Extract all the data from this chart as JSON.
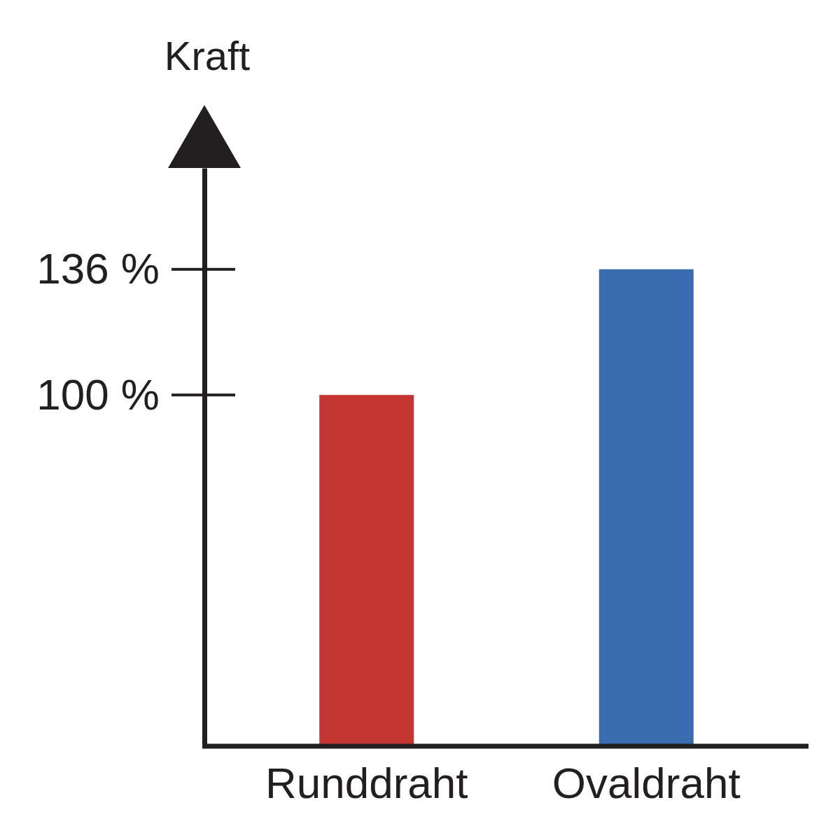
{
  "chart_data": {
    "type": "bar",
    "ylabel": "Kraft",
    "categories": [
      "Runddraht",
      "Ovaldraht"
    ],
    "values": [
      100,
      136
    ],
    "colors": [
      "#c43631",
      "#3a6cb0"
    ],
    "ylim": [
      0,
      165
    ],
    "yticks": [
      {
        "value": 100,
        "label": "100 %"
      },
      {
        "value": 136,
        "label": "136 %"
      }
    ],
    "grid": false
  }
}
